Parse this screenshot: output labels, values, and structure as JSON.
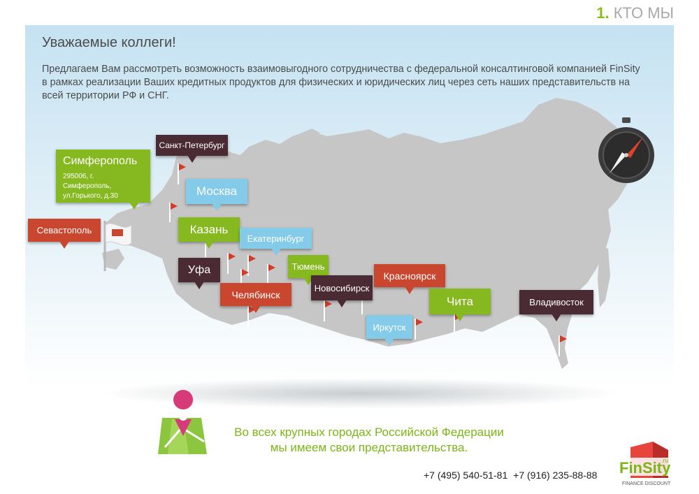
{
  "header": {
    "section_number": "1.",
    "section_title": "КТО МЫ"
  },
  "greeting": "Уважаемые коллеги!",
  "intro": "Предлагаем Вам рассмотреть возможность взаимовыгодного сотрудничества с федеральной консалтинговой компанией FinSity в рамках реализации Ваших кредитных продуктов для физических и юридических лиц через сеть наших представительств на всей территории РФ и СНГ.",
  "cities": {
    "spb": "Санкт-Петербург",
    "simferopol": "Симферополь",
    "simferopol_address": "295006, г. Симферополь, ул.Горького, д.30",
    "moscow": "Москва",
    "sevastopol": "Севастополь",
    "kazan": "Казань",
    "ekaterinburg": "Екатеринбург",
    "ufa": "Уфа",
    "tyumen": "Тюмень",
    "chelyabinsk": "Челябинск",
    "novosibirsk": "Новосибирск",
    "krasnoyarsk": "Красноярск",
    "irkutsk": "Иркутск",
    "chita": "Чита",
    "vladivostok": "Владивосток"
  },
  "footer": {
    "line1": "Во всех крупных городах Российской Федерации",
    "line2": "мы имеем свои представительства.",
    "phone1": "+7 (495) 540-51-81",
    "phone2": "+7 (916) 235-88-88"
  },
  "logo": {
    "name": "FinSity",
    "domain": ".ru",
    "tagline": "FINANCE DISCOUNT"
  },
  "icons": {
    "compass": "compass-icon",
    "map": "map-pin-icon",
    "flag": "flag-icon"
  },
  "colors": {
    "red": "#c9462f",
    "dark": "#4a2b33",
    "blue": "#84cbea",
    "green": "#86b920",
    "map": "#c6c6c6"
  }
}
